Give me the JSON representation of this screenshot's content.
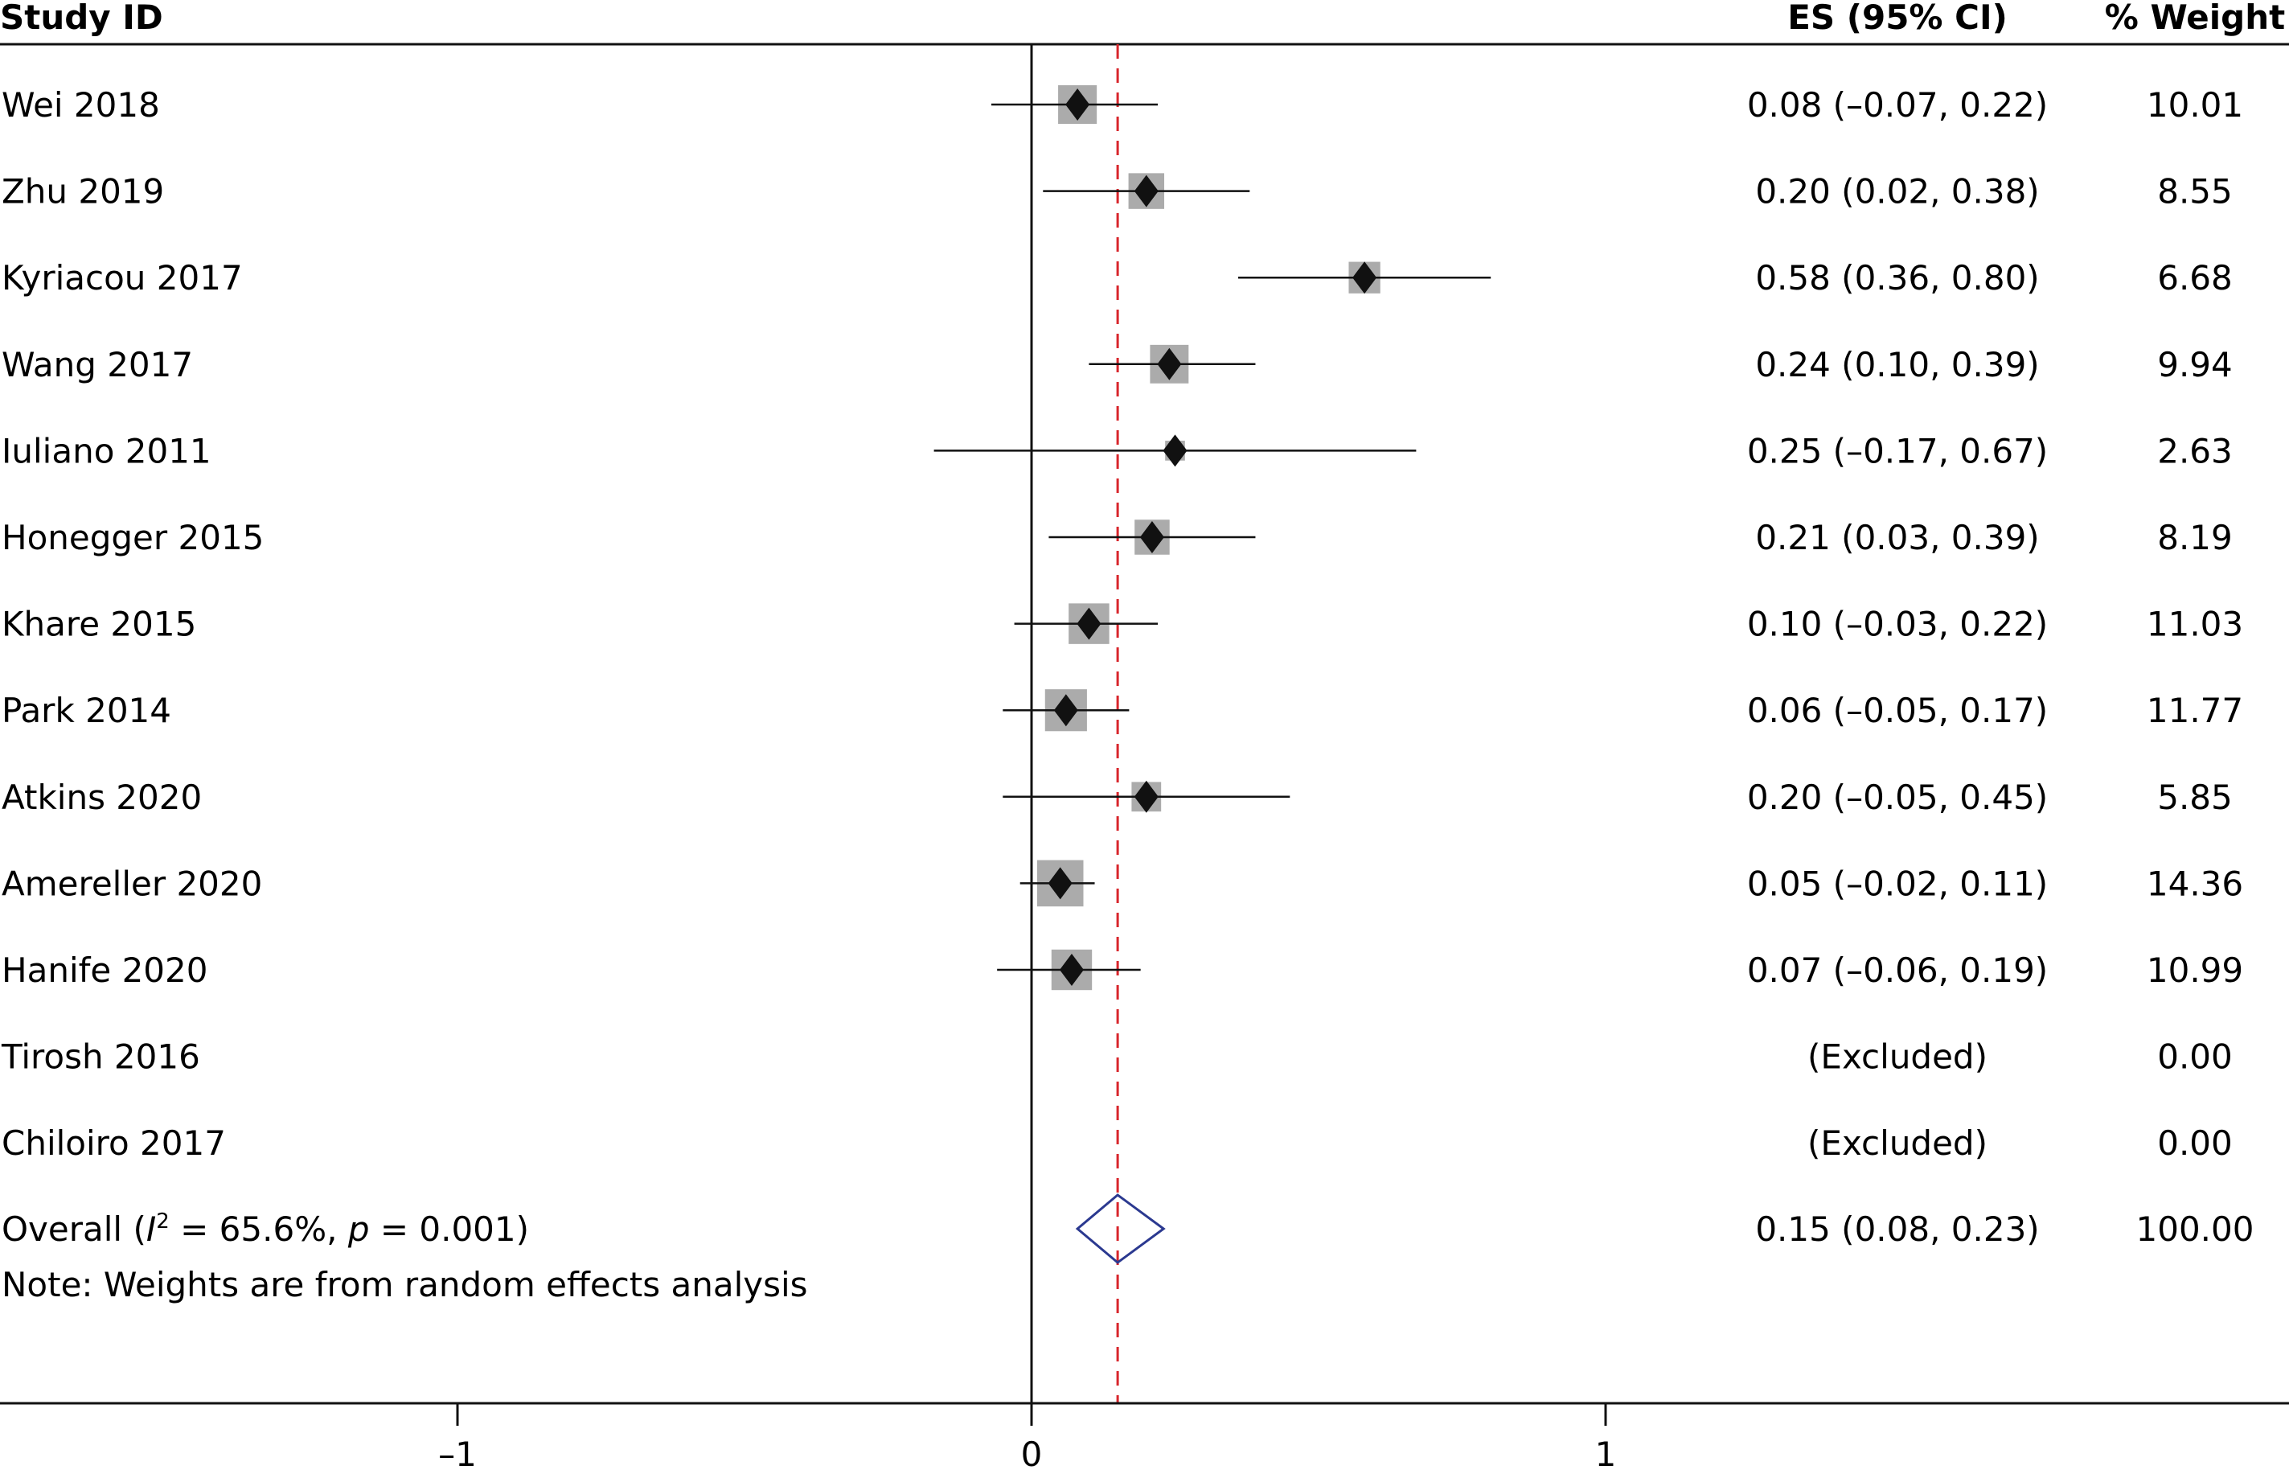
{
  "chart_data": {
    "type": "forest",
    "headers": {
      "study": "Study ID",
      "es": "ES (95% CI)",
      "weight": "% Weight"
    },
    "studies": [
      {
        "label": "Wei 2018",
        "es": 0.08,
        "lo": -0.07,
        "hi": 0.22,
        "es_text": "0.08 (–0.07, 0.22)",
        "weight": 10.01,
        "weight_text": "10.01",
        "excluded": false
      },
      {
        "label": "Zhu 2019",
        "es": 0.2,
        "lo": 0.02,
        "hi": 0.38,
        "es_text": "0.20 (0.02, 0.38)",
        "weight": 8.55,
        "weight_text": "8.55",
        "excluded": false
      },
      {
        "label": "Kyriacou 2017",
        "es": 0.58,
        "lo": 0.36,
        "hi": 0.8,
        "es_text": "0.58 (0.36, 0.80)",
        "weight": 6.68,
        "weight_text": "6.68",
        "excluded": false
      },
      {
        "label": "Wang 2017",
        "es": 0.24,
        "lo": 0.1,
        "hi": 0.39,
        "es_text": "0.24 (0.10, 0.39)",
        "weight": 9.94,
        "weight_text": "9.94",
        "excluded": false
      },
      {
        "label": "Iuliano 2011",
        "es": 0.25,
        "lo": -0.17,
        "hi": 0.67,
        "es_text": "0.25 (–0.17, 0.67)",
        "weight": 2.63,
        "weight_text": "2.63",
        "excluded": false
      },
      {
        "label": "Honegger 2015",
        "es": 0.21,
        "lo": 0.03,
        "hi": 0.39,
        "es_text": "0.21 (0.03, 0.39)",
        "weight": 8.19,
        "weight_text": "8.19",
        "excluded": false
      },
      {
        "label": "Khare 2015",
        "es": 0.1,
        "lo": -0.03,
        "hi": 0.22,
        "es_text": "0.10 (–0.03, 0.22)",
        "weight": 11.03,
        "weight_text": "11.03",
        "excluded": false
      },
      {
        "label": "Park 2014",
        "es": 0.06,
        "lo": -0.05,
        "hi": 0.17,
        "es_text": "0.06 (–0.05, 0.17)",
        "weight": 11.77,
        "weight_text": "11.77",
        "excluded": false
      },
      {
        "label": "Atkins 2020",
        "es": 0.2,
        "lo": -0.05,
        "hi": 0.45,
        "es_text": "0.20 (–0.05, 0.45)",
        "weight": 5.85,
        "weight_text": "5.85",
        "excluded": false
      },
      {
        "label": "Amereller 2020",
        "es": 0.05,
        "lo": -0.02,
        "hi": 0.11,
        "es_text": "0.05 (–0.02, 0.11)",
        "weight": 14.36,
        "weight_text": "14.36",
        "excluded": false
      },
      {
        "label": "Hanife 2020",
        "es": 0.07,
        "lo": -0.06,
        "hi": 0.19,
        "es_text": "0.07 (–0.06, 0.19)",
        "weight": 10.99,
        "weight_text": "10.99",
        "excluded": false
      },
      {
        "label": "Tirosh 2016",
        "es": null,
        "lo": null,
        "hi": null,
        "es_text": "(Excluded)",
        "weight": 0.0,
        "weight_text": "0.00",
        "excluded": true
      },
      {
        "label": "Chiloiro 2017",
        "es": null,
        "lo": null,
        "hi": null,
        "es_text": "(Excluded)",
        "weight": 0.0,
        "weight_text": "0.00",
        "excluded": true
      }
    ],
    "overall": {
      "label_prefix": "Overall (",
      "label_i": "I",
      "label_sup": "2",
      "label_mid": " = 65.6%, ",
      "label_p": "p",
      "label_end": " = 0.001)",
      "es": 0.15,
      "lo": 0.08,
      "hi": 0.23,
      "es_text": "0.15 (0.08, 0.23)",
      "weight_text": "100.00"
    },
    "note": "Note: Weights are from random effects analysis",
    "x_ticks": [
      {
        "value": -1,
        "label": "–1"
      },
      {
        "value": 0,
        "label": "0"
      },
      {
        "value": 1,
        "label": "1"
      }
    ],
    "null_line": 0,
    "pooled_line": 0.15,
    "xlim": [
      -1.8,
      2.1
    ],
    "colors": {
      "ink": "#111111",
      "weight_box": "#ababab",
      "pooled_line": "#d8262c",
      "overall_diamond": "#2b3990"
    }
  }
}
